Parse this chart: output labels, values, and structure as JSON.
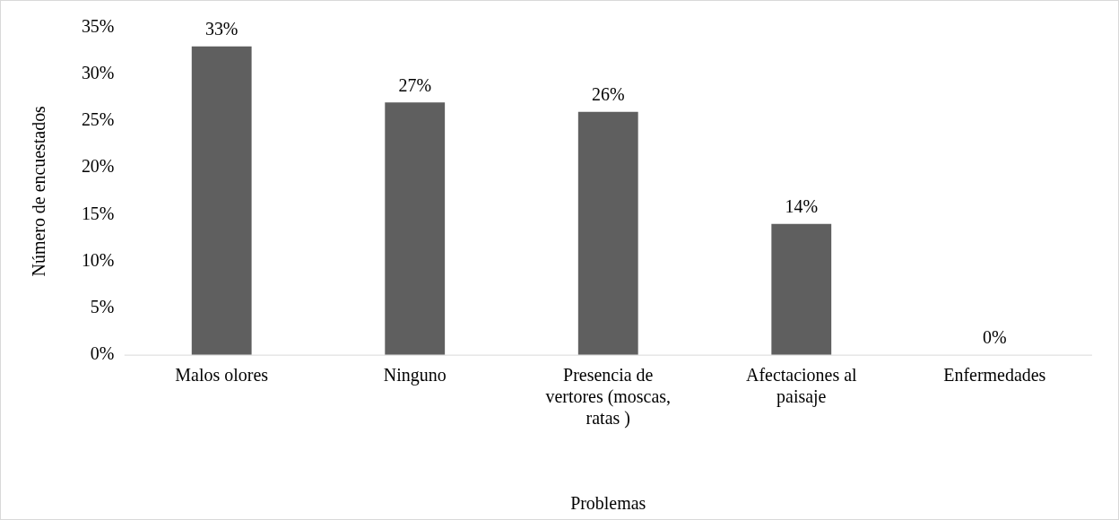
{
  "chart_data": {
    "type": "bar",
    "xlabel": "Problemas",
    "ylabel": "Número de encuestados",
    "categories": [
      "Malos olores",
      "Ninguno",
      "Presencia de vertores (moscas, ratas )",
      "Afectaciones al paisaje",
      "Enfermedades"
    ],
    "values": [
      33,
      27,
      26,
      14,
      0
    ],
    "value_labels": [
      "33%",
      "27%",
      "26%",
      "14%",
      "0%"
    ],
    "color": "#5f5f5f",
    "ylim": [
      0,
      35
    ],
    "yticks": [
      {
        "value": 0,
        "label": "0%"
      },
      {
        "value": 5,
        "label": "5%"
      },
      {
        "value": 10,
        "label": "10%"
      },
      {
        "value": 15,
        "label": "15%"
      },
      {
        "value": 20,
        "label": "20%"
      },
      {
        "value": 25,
        "label": "25%"
      },
      {
        "value": 30,
        "label": "30%"
      },
      {
        "value": 35,
        "label": "35%"
      }
    ],
    "grid": false,
    "legend": false
  }
}
